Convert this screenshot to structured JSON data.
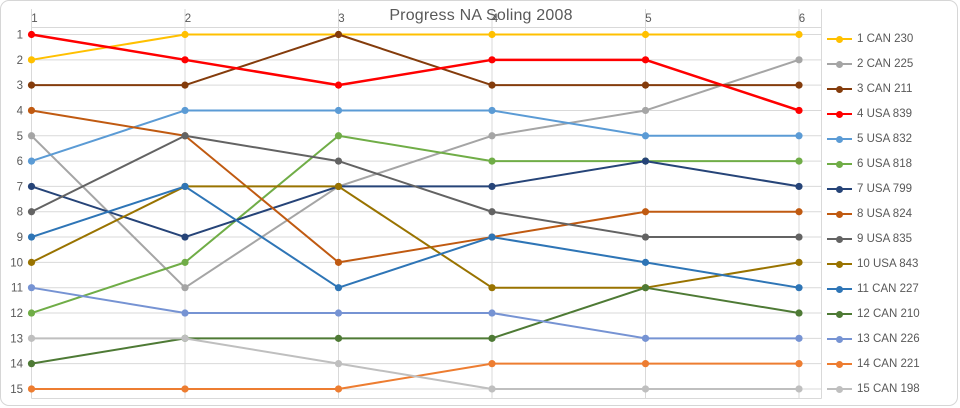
{
  "title": "Progress NA Soling 2008",
  "chart_data": {
    "type": "line",
    "title": "Progress NA Soling 2008",
    "xlabel": "",
    "ylabel": "",
    "x_axis_position": "top",
    "x_ticks": [
      "1",
      "2",
      "3",
      "4",
      "5",
      "6"
    ],
    "y_ticks": [
      "1",
      "2",
      "3",
      "4",
      "5",
      "6",
      "7",
      "8",
      "9",
      "10",
      "11",
      "12",
      "13",
      "14",
      "15"
    ],
    "y_axis_inverted": true,
    "ylim": [
      1,
      15
    ],
    "grid": true,
    "legend_position": "right",
    "gridline_color": "#d9d9d9",
    "text_color": "#595959",
    "series": [
      {
        "name": "1 CAN 230",
        "color": "#FFC000",
        "stroke_width": 2,
        "values": [
          2,
          1,
          1,
          1,
          1,
          1
        ]
      },
      {
        "name": "2 CAN 225",
        "color": "#A5A5A5",
        "stroke_width": 2,
        "values": [
          5,
          11,
          7,
          5,
          4,
          2
        ]
      },
      {
        "name": "3 CAN 211",
        "color": "#843C0C",
        "stroke_width": 2,
        "values": [
          3,
          3,
          1,
          3,
          3,
          3
        ]
      },
      {
        "name": "4 USA 839",
        "color": "#FF0000",
        "stroke_width": 2.5,
        "values": [
          1,
          2,
          3,
          2,
          2,
          4
        ]
      },
      {
        "name": "5 USA 832",
        "color": "#5B9BD5",
        "stroke_width": 2,
        "values": [
          6,
          4,
          4,
          4,
          5,
          5
        ]
      },
      {
        "name": "6 USA 818",
        "color": "#70AD47",
        "stroke_width": 2,
        "values": [
          12,
          10,
          5,
          6,
          6,
          6
        ]
      },
      {
        "name": "7 USA 799",
        "color": "#264478",
        "stroke_width": 2,
        "values": [
          7,
          9,
          7,
          7,
          6,
          7
        ]
      },
      {
        "name": "8 USA 824",
        "color": "#C05A11",
        "stroke_width": 2,
        "values": [
          4,
          5,
          10,
          9,
          8,
          8
        ]
      },
      {
        "name": "9 USA 835",
        "color": "#636363",
        "stroke_width": 2,
        "values": [
          8,
          5,
          6,
          8,
          9,
          9
        ]
      },
      {
        "name": "10 USA 843",
        "color": "#997300",
        "stroke_width": 2,
        "values": [
          10,
          7,
          7,
          11,
          11,
          10
        ]
      },
      {
        "name": "11 CAN 227",
        "color": "#2E75B6",
        "stroke_width": 2,
        "values": [
          9,
          7,
          11,
          9,
          10,
          11
        ]
      },
      {
        "name": "12 CAN 210",
        "color": "#4E7A35",
        "stroke_width": 2,
        "values": [
          14,
          13,
          13,
          13,
          11,
          12
        ]
      },
      {
        "name": "13 CAN 226",
        "color": "#7693D3",
        "stroke_width": 2,
        "values": [
          11,
          12,
          12,
          12,
          13,
          13
        ]
      },
      {
        "name": "14 CAN 221",
        "color": "#ED7D31",
        "stroke_width": 2,
        "values": [
          15,
          15,
          15,
          14,
          14,
          14
        ]
      },
      {
        "name": "15 CAN 198",
        "color": "#BFBFBF",
        "stroke_width": 2,
        "values": [
          13,
          13,
          14,
          15,
          15,
          15
        ]
      }
    ]
  }
}
